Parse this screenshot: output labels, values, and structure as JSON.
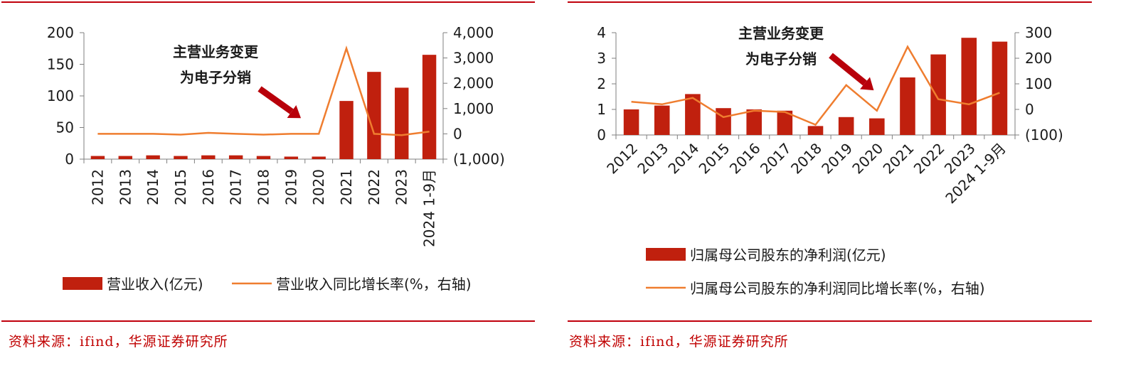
{
  "colors": {
    "rule": "#c0000c",
    "bar": "#c0200e",
    "line": "#ef7d2f",
    "axis": "#7f7f7f",
    "text": "#1a1a1a",
    "source": "#c00000"
  },
  "source_left": "资料来源：ifind，华源证券研究所",
  "source_right": "资料来源：ifind，华源证券研究所",
  "chart_data": [
    {
      "type": "bar",
      "categories": [
        "2012",
        "2013",
        "2014",
        "2015",
        "2016",
        "2017",
        "2018",
        "2019",
        "2020",
        "2021",
        "2022",
        "2023",
        "2024 1-9月"
      ],
      "series": [
        {
          "name": "营业收入(亿元)",
          "type": "bar",
          "axis": "left",
          "values": [
            5,
            5,
            6,
            5,
            6,
            6,
            5,
            4,
            4,
            92,
            138,
            113,
            165
          ]
        },
        {
          "name": "营业收入同比增长率(%，右轴)",
          "type": "line",
          "axis": "right",
          "values": [
            0,
            0,
            0,
            -30,
            40,
            0,
            -30,
            0,
            0,
            3380,
            0,
            -50,
            90
          ]
        }
      ],
      "y_left": {
        "min": 0,
        "max": 200,
        "ticks": [
          "0",
          "50",
          "100",
          "150",
          "200"
        ]
      },
      "y_right": {
        "min": -1000,
        "max": 4000,
        "ticks": [
          "(1,000)",
          "0",
          "1,000",
          "2,000",
          "3,000",
          "4,000"
        ]
      },
      "annotation": {
        "lines": [
          "主营业务变更",
          "为电子分销"
        ]
      },
      "legend_position": "bottom"
    },
    {
      "type": "bar",
      "categories": [
        "2012",
        "2013",
        "2014",
        "2015",
        "2016",
        "2017",
        "2018",
        "2019",
        "2020",
        "2021",
        "2022",
        "2023",
        "2024 1-9月"
      ],
      "series": [
        {
          "name": "归属母公司股东的净利润(亿元)",
          "type": "bar",
          "axis": "left",
          "values": [
            1.0,
            1.15,
            1.6,
            1.05,
            1.0,
            0.95,
            0.35,
            0.7,
            0.65,
            2.25,
            3.15,
            3.8,
            3.65
          ]
        },
        {
          "name": "归属母公司股东的净利润同比增长率(%，右轴)",
          "type": "line",
          "axis": "right",
          "values": [
            30,
            20,
            45,
            -30,
            -5,
            -10,
            -60,
            95,
            -5,
            245,
            40,
            20,
            65
          ]
        }
      ],
      "y_left": {
        "min": 0,
        "max": 4,
        "ticks": [
          "0",
          "1",
          "2",
          "3",
          "4"
        ]
      },
      "y_right": {
        "min": -100,
        "max": 300,
        "ticks": [
          "(100)",
          "0",
          "100",
          "200",
          "300"
        ]
      },
      "annotation": {
        "lines": [
          "主营业务变更",
          "为电子分销"
        ]
      },
      "legend_position": "bottom"
    }
  ]
}
